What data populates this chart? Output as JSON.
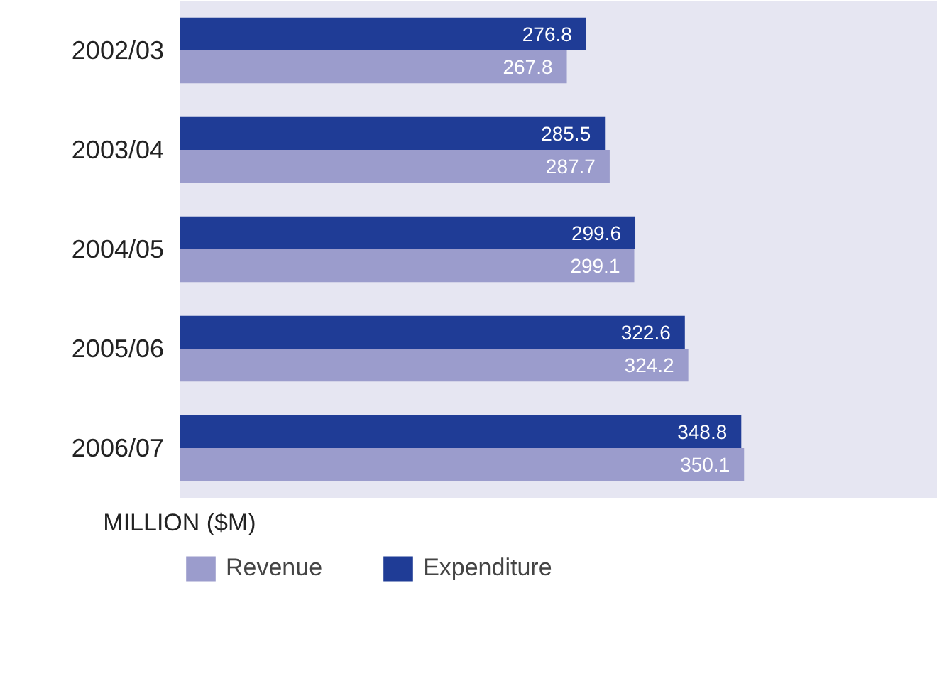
{
  "chart_data": {
    "type": "bar",
    "orientation": "horizontal",
    "xlabel": "MILLION ($M)",
    "categories": [
      "2002/03",
      "2003/04",
      "2004/05",
      "2005/06",
      "2006/07"
    ],
    "xlim": [
      88,
      440
    ],
    "series": [
      {
        "name": "Revenue",
        "color": "#9b9ccc",
        "values": [
          267.8,
          287.7,
          299.1,
          324.2,
          350.1
        ]
      },
      {
        "name": "Expenditure",
        "color": "#1f3c96",
        "values": [
          276.8,
          285.5,
          299.6,
          322.6,
          348.8
        ]
      }
    ],
    "data_labels": true,
    "legend": "bottom",
    "grid": false,
    "tick_labels": "y"
  }
}
